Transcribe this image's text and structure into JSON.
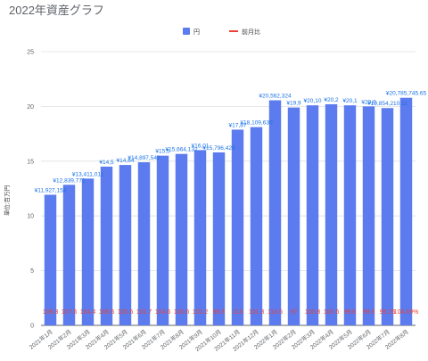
{
  "chart_data": {
    "type": "bar",
    "title": "2022年資産グラフ",
    "ylabel": "単位:百万円",
    "xlabel": "",
    "ylim": [
      0,
      25
    ],
    "yticks": [
      0,
      5,
      10,
      15,
      20,
      25
    ],
    "grid": true,
    "legend_position": "top",
    "categories": [
      "2021年1月",
      "2021年2月",
      "2021年3月",
      "2021年4月",
      "2021年5月",
      "2021年6月",
      "2021年7月",
      "2021年8月",
      "2021年9月",
      "2021年10月",
      "2021年11月",
      "2021年12月",
      "2022年1月",
      "2022年2月",
      "2022年3月",
      "2022年4月",
      "2022年5月",
      "2022年6月",
      "2022年7月",
      "2022年8月"
    ],
    "series": [
      {
        "name": "円",
        "type": "bar",
        "color": "#5b7bef",
        "values": [
          11.93,
          12.84,
          13.41,
          14.5,
          14.65,
          14.9,
          15.5,
          15.66,
          16.01,
          15.8,
          17.88,
          18.11,
          20.56,
          19.9,
          20.1,
          20.2,
          20.1,
          20.0,
          19.85,
          20.79
        ],
        "labels": [
          "¥11,927,153",
          "¥12,839,771",
          "¥13,411,011",
          "¥14,5",
          "¥14,64",
          "¥14,897,542",
          "¥15,5",
          "¥15,664,132",
          "¥16,01",
          "¥15,796,429",
          "¥17,87",
          "¥18,109,630",
          "¥20,562,324",
          "¥19,9",
          "¥20,10",
          "¥20,2",
          "¥20,1",
          "¥20,0",
          "¥19,854,210.11",
          "¥20,785,745.65"
        ]
      },
      {
        "name": "前月比",
        "type": "line",
        "color": "#ea4335",
        "labels": [
          "108.3",
          "107.6",
          "104.4",
          "108.5",
          "100.6",
          "101.7",
          "104.6",
          "100.6",
          "102.2",
          "98.5",
          "113",
          "101.3",
          "113.5",
          "97",
          "100.8",
          "100.6",
          "99.6",
          "99.5",
          "99.25",
          "104.69%"
        ]
      }
    ]
  }
}
